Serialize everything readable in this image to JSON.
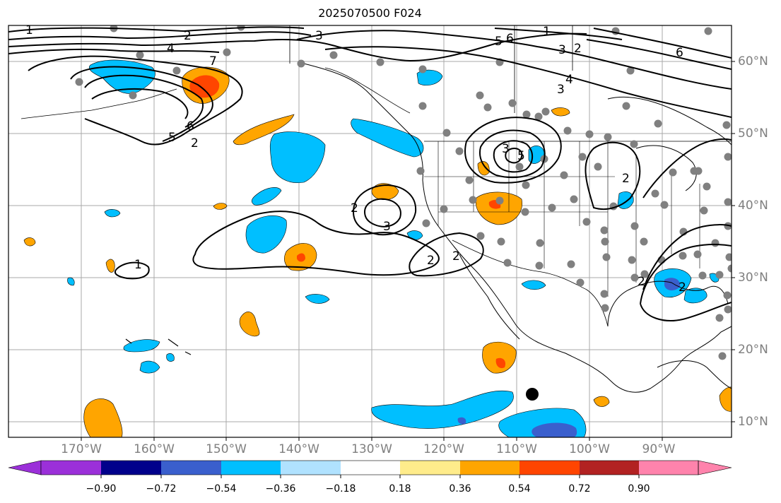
{
  "title": "2025070500 F024",
  "lon_labels": [
    "170°W",
    "160°W",
    "150°W",
    "140°W",
    "130°W",
    "120°W",
    "110°W",
    "100°W",
    "90°W"
  ],
  "lat_labels": [
    "60°N",
    "50°N",
    "40°N",
    "30°N",
    "20°N",
    "10°N"
  ],
  "contour_labels": [
    "1",
    "2",
    "3",
    "4",
    "5",
    "6",
    "7",
    "1",
    "2",
    "3",
    "5",
    "6",
    "2",
    "3",
    "6",
    "5",
    "4",
    "2",
    "3",
    "2",
    "2",
    "2",
    "3",
    "2",
    "1",
    "2"
  ],
  "colorbar": {
    "ticks": [
      "−0.90",
      "−0.72",
      "−0.54",
      "−0.36",
      "−0.18",
      "0.18",
      "0.36",
      "0.54",
      "0.72",
      "0.90"
    ],
    "colors": [
      "#9b30d9",
      "#00008b",
      "#3a5fcd",
      "#00bfff",
      "#b0e2ff",
      "#ffffff",
      "#ffec8b",
      "#ffa500",
      "#ff4500",
      "#b22222",
      "#ff83ac"
    ]
  },
  "colors": {
    "neg_light": "#00bfff",
    "neg_mid": "#3a5fcd",
    "pos_light": "#ffa500",
    "pos_mid": "#ff4500",
    "station": "#808080",
    "marker": "#000000"
  }
}
